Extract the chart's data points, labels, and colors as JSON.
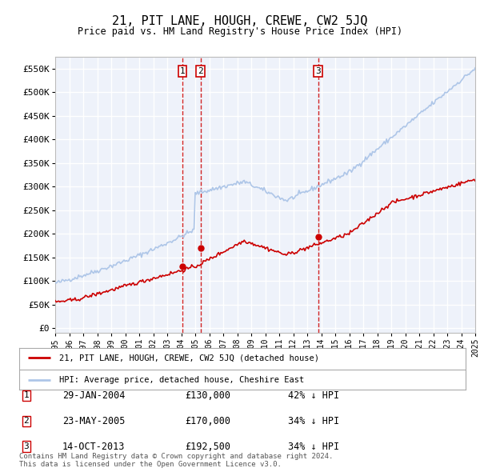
{
  "title": "21, PIT LANE, HOUGH, CREWE, CW2 5JQ",
  "subtitle": "Price paid vs. HM Land Registry's House Price Index (HPI)",
  "yticks": [
    0,
    50000,
    100000,
    150000,
    200000,
    250000,
    300000,
    350000,
    400000,
    450000,
    500000,
    550000
  ],
  "ylim": [
    -10000,
    575000
  ],
  "background_color": "#ffffff",
  "plot_bg_color": "#eef2fa",
  "grid_color": "#ffffff",
  "hpi_color": "#aec6e8",
  "sale_color": "#cc0000",
  "dashed_color": "#cc0000",
  "transactions": [
    {
      "label": "1",
      "date": "29-JAN-2004",
      "price": 130000,
      "hpi_pct": "42% ↓ HPI",
      "year": 2004.08
    },
    {
      "label": "2",
      "date": "23-MAY-2005",
      "price": 170000,
      "hpi_pct": "34% ↓ HPI",
      "year": 2005.39
    },
    {
      "label": "3",
      "date": "14-OCT-2013",
      "price": 192500,
      "hpi_pct": "34% ↓ HPI",
      "year": 2013.79
    }
  ],
  "legend_line1": "21, PIT LANE, HOUGH, CREWE, CW2 5JQ (detached house)",
  "legend_line2": "HPI: Average price, detached house, Cheshire East",
  "footnote": "Contains HM Land Registry data © Crown copyright and database right 2024.\nThis data is licensed under the Open Government Licence v3.0.",
  "x_start_year": 1995,
  "x_end_year": 2025
}
